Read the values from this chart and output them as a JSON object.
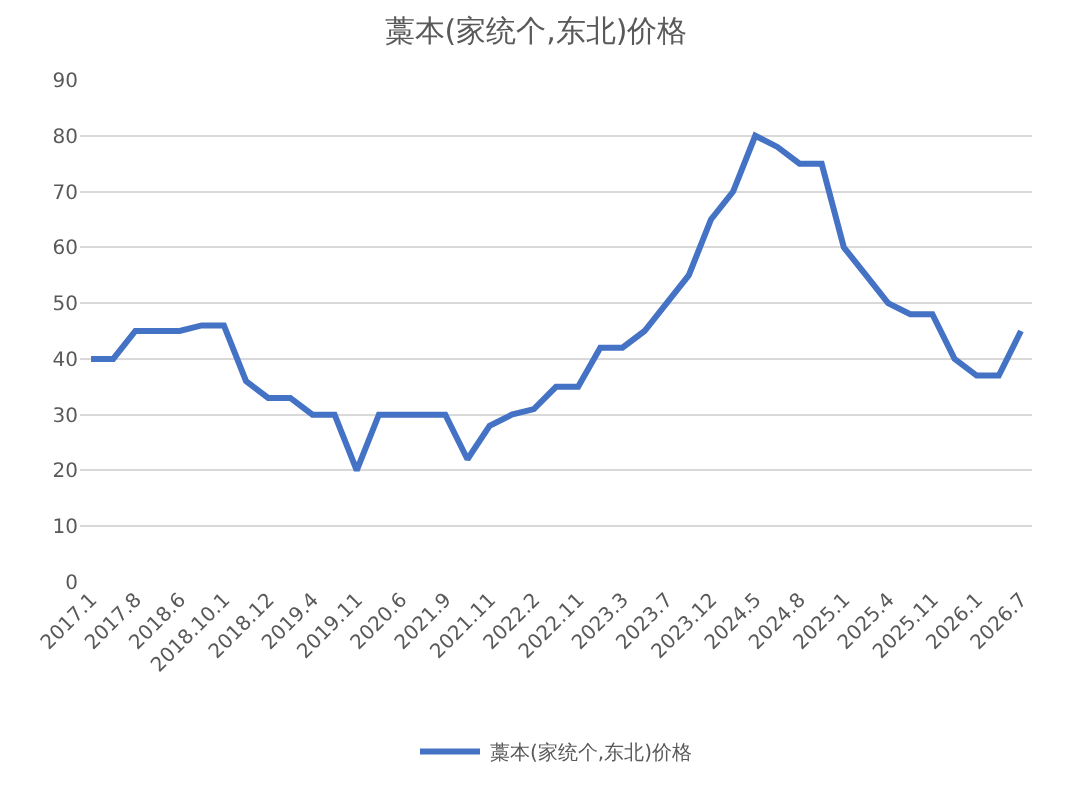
{
  "chart_data": {
    "type": "line",
    "title": "藁本(家统个,东北)价格",
    "categories": [
      "2017.1",
      null,
      "2017.8",
      null,
      "2018.6",
      null,
      "2018.10.1",
      null,
      "2018.12",
      null,
      "2019.4",
      null,
      "2019.11",
      null,
      "2020.6",
      null,
      "2021.9",
      null,
      "2021.11",
      null,
      "2022.2",
      null,
      "2022.11",
      null,
      "2023.3",
      null,
      "2023.7",
      null,
      "2023.12",
      null,
      "2024.5",
      null,
      "2024.8",
      null,
      "2025.1",
      null,
      "2025.4",
      null,
      "2025.11",
      null,
      "2026.1",
      null,
      "2026.7"
    ],
    "series": [
      {
        "name": "藁本(家统个,东北)价格",
        "color": "#4472c4",
        "values": [
          40,
          40,
          45,
          45,
          45,
          46,
          46,
          36,
          33,
          33,
          30,
          30,
          20,
          30,
          30,
          30,
          30,
          22,
          28,
          30,
          31,
          35,
          35,
          42,
          42,
          45,
          50,
          55,
          65,
          70,
          80,
          78,
          75,
          75,
          60,
          55,
          50,
          48,
          48,
          40,
          37,
          37,
          45
        ]
      }
    ],
    "ylim": [
      0,
      90
    ],
    "yticks": [
      0,
      10,
      20,
      30,
      40,
      50,
      60,
      70,
      80,
      90
    ],
    "grid": "y",
    "legend": "bottom",
    "marker": "none",
    "line_style": "solid"
  }
}
